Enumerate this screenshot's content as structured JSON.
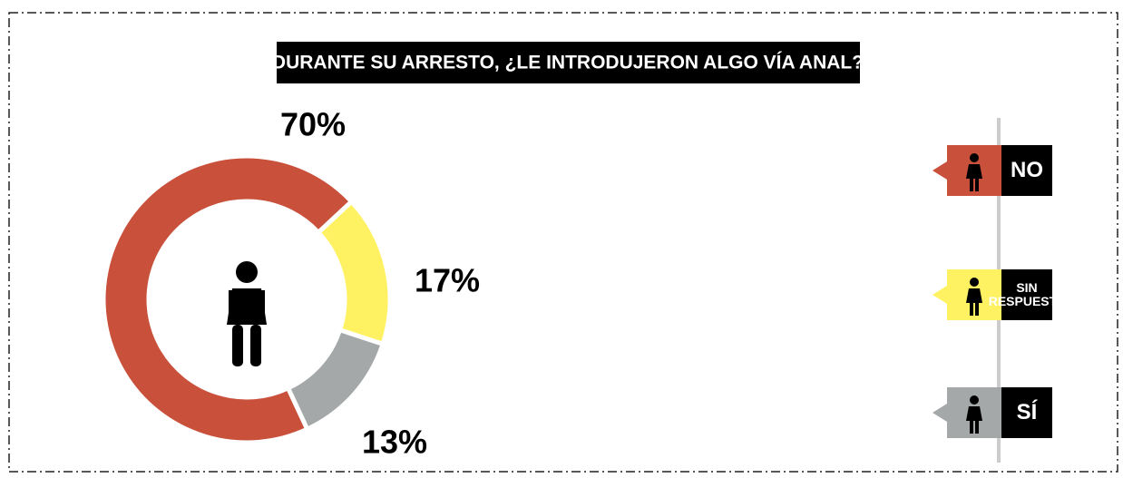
{
  "chart_data": {
    "type": "donut",
    "title": "DURANTE SU ARRESTO, ¿LE INTRODUJERON ALGO VÍA ANAL?",
    "categories": [
      "NO",
      "SIN RESPUESTA",
      "SÍ"
    ],
    "values": [
      70,
      17,
      13
    ],
    "value_labels": [
      "70%",
      "17%",
      "13%"
    ],
    "colors": [
      "#c9503a",
      "#fef262",
      "#a4a8a9"
    ]
  }
}
